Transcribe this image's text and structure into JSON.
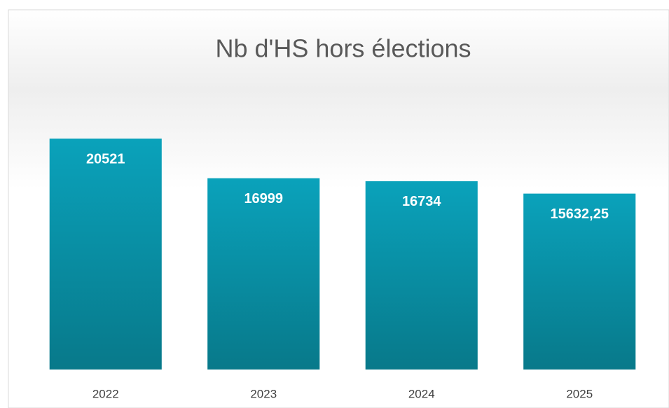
{
  "chart_data": {
    "type": "bar",
    "title": "Nb d'HS hors élections",
    "categories": [
      "2022",
      "2023",
      "2024",
      "2025"
    ],
    "values": [
      20521,
      16999,
      16734,
      15632.25
    ],
    "value_labels": [
      "20521",
      "16999",
      "16734",
      "15632,25"
    ],
    "color": "#0a9bb2",
    "ylim": [
      0,
      25000
    ]
  }
}
